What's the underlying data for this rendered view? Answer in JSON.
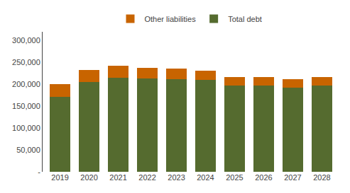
{
  "chart_data": {
    "type": "bar",
    "stacked": true,
    "categories": [
      "2019",
      "2020",
      "2021",
      "2022",
      "2023",
      "2024",
      "2025",
      "2026",
      "2027",
      "2028"
    ],
    "series": [
      {
        "name": "Total debt",
        "color": "#556b2f",
        "values": [
          172000,
          205000,
          215000,
          213000,
          212000,
          210000,
          197000,
          197000,
          193000,
          197000
        ]
      },
      {
        "name": "Other liabilities",
        "color": "#c86400",
        "values": [
          28000,
          27000,
          28000,
          25000,
          24000,
          21000,
          20000,
          20000,
          19000,
          19000
        ]
      }
    ],
    "ylim": [
      0,
      320000
    ],
    "yticks": [
      {
        "value": 0,
        "label": "-"
      },
      {
        "value": 50000,
        "label": "50,000"
      },
      {
        "value": 100000,
        "label": "100,000"
      },
      {
        "value": 150000,
        "label": "150,000"
      },
      {
        "value": 200000,
        "label": "200,000"
      },
      {
        "value": 250000,
        "label": "250,000"
      },
      {
        "value": 300000,
        "label": "300,000"
      }
    ],
    "grid": false,
    "legend": "upper center"
  }
}
